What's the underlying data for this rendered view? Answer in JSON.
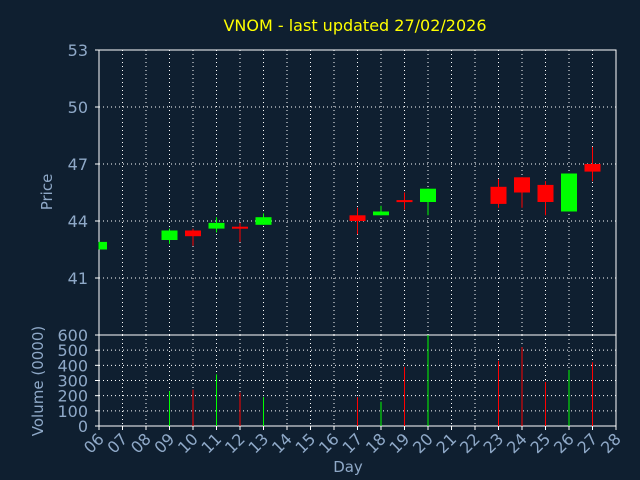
{
  "chart_data": {
    "title": "VNOM - last updated 27/02/2026",
    "type": "candlestick",
    "colors": {
      "background": "#0f1f30",
      "up": "#00ff00",
      "down": "#ff0000",
      "grid": "#ffffff",
      "text": "#8fa9c8",
      "title": "#ffff00"
    },
    "price_panel": {
      "ylabel": "Price",
      "ylim": [
        38,
        53
      ],
      "yticks": [
        41,
        44,
        47,
        50,
        53
      ],
      "grid": true
    },
    "volume_panel": {
      "ylabel": "Volume (0000)",
      "ylim": [
        0,
        600
      ],
      "yticks": [
        0,
        100,
        200,
        300,
        400,
        500,
        600
      ],
      "grid": true
    },
    "xlabel": "Day",
    "x_ticks": [
      "06",
      "07",
      "08",
      "09",
      "10",
      "11",
      "12",
      "13",
      "14",
      "15",
      "16",
      "17",
      "18",
      "19",
      "20",
      "21",
      "22",
      "23",
      "24",
      "25",
      "26",
      "27",
      "28"
    ],
    "candles": [
      {
        "day": "06",
        "open": 42.5,
        "close": 42.9,
        "high": 42.9,
        "low": 42.5,
        "volume": 0
      },
      {
        "day": "09",
        "open": 43.0,
        "close": 43.5,
        "high": 43.6,
        "low": 42.8,
        "volume": 230
      },
      {
        "day": "10",
        "open": 43.5,
        "close": 43.2,
        "high": 43.6,
        "low": 42.7,
        "volume": 240
      },
      {
        "day": "11",
        "open": 43.6,
        "close": 43.9,
        "high": 44.2,
        "low": 43.4,
        "volume": 340
      },
      {
        "day": "12",
        "open": 43.7,
        "close": 43.6,
        "high": 43.9,
        "low": 42.9,
        "volume": 220
      },
      {
        "day": "13",
        "open": 43.8,
        "close": 44.2,
        "high": 44.4,
        "low": 43.8,
        "volume": 190
      },
      {
        "day": "17",
        "open": 44.3,
        "close": 44.0,
        "high": 44.7,
        "low": 43.3,
        "volume": 190
      },
      {
        "day": "18",
        "open": 44.3,
        "close": 44.5,
        "high": 44.8,
        "low": 44.3,
        "volume": 160
      },
      {
        "day": "19",
        "open": 45.1,
        "close": 45.0,
        "high": 45.5,
        "low": 44.6,
        "volume": 390
      },
      {
        "day": "20",
        "open": 45.0,
        "close": 45.7,
        "high": 45.7,
        "low": 44.3,
        "volume": 610
      },
      {
        "day": "23",
        "open": 45.8,
        "close": 44.9,
        "high": 46.2,
        "low": 44.7,
        "volume": 430
      },
      {
        "day": "24",
        "open": 46.3,
        "close": 45.5,
        "high": 46.3,
        "low": 44.7,
        "volume": 520
      },
      {
        "day": "25",
        "open": 45.9,
        "close": 45.0,
        "high": 46.1,
        "low": 44.3,
        "volume": 290
      },
      {
        "day": "26",
        "open": 44.5,
        "close": 46.5,
        "high": 46.5,
        "low": 44.5,
        "volume": 370
      },
      {
        "day": "27",
        "open": 47.0,
        "close": 46.6,
        "high": 47.9,
        "low": 46.1,
        "volume": 420
      }
    ]
  }
}
